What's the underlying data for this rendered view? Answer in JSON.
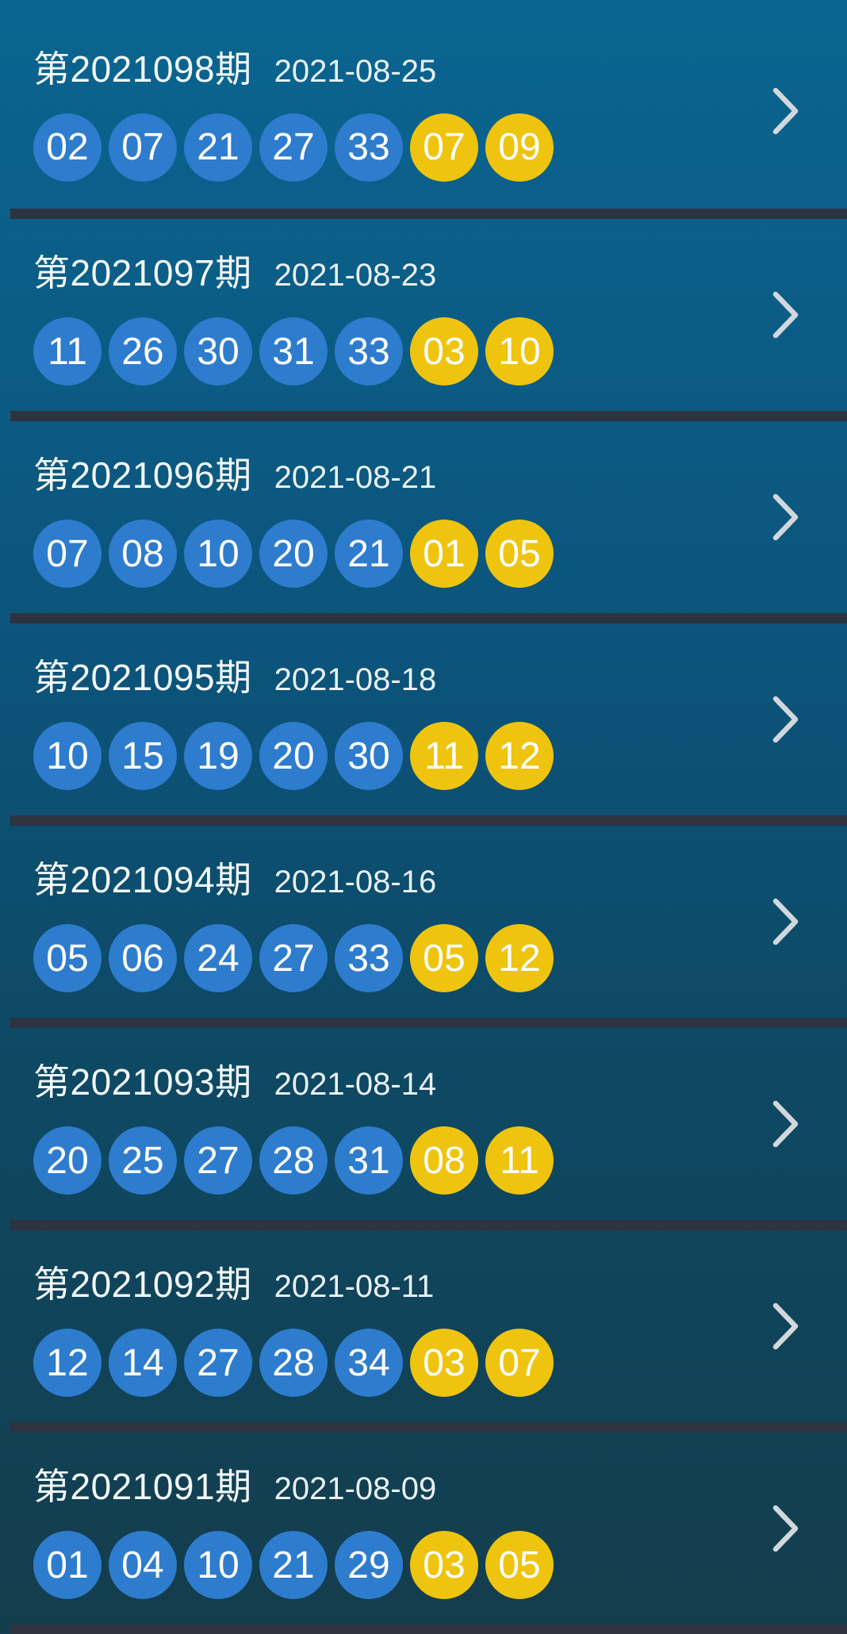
{
  "colors": {
    "bg_top": "#0a6590",
    "bg_mid": "#0c537a",
    "bg_bottom": "#143d4c",
    "divider": "#2e3340",
    "front_ball": "#2e7ccd",
    "back_ball": "#eec40e",
    "ball_text": "#ffffff",
    "title_text": "#f2f8fb",
    "date_text": "#e9f1f6",
    "chevron": "#d2d7dc"
  },
  "icons": {
    "chevron_right": "chevron-right-icon"
  },
  "list": {
    "rows": [
      {
        "issue": "第2021098期",
        "date": "2021-08-25",
        "front": [
          "02",
          "07",
          "21",
          "27",
          "33"
        ],
        "back": [
          "07",
          "09"
        ]
      },
      {
        "issue": "第2021097期",
        "date": "2021-08-23",
        "front": [
          "11",
          "26",
          "30",
          "31",
          "33"
        ],
        "back": [
          "03",
          "10"
        ]
      },
      {
        "issue": "第2021096期",
        "date": "2021-08-21",
        "front": [
          "07",
          "08",
          "10",
          "20",
          "21"
        ],
        "back": [
          "01",
          "05"
        ]
      },
      {
        "issue": "第2021095期",
        "date": "2021-08-18",
        "front": [
          "10",
          "15",
          "19",
          "20",
          "30"
        ],
        "back": [
          "11",
          "12"
        ]
      },
      {
        "issue": "第2021094期",
        "date": "2021-08-16",
        "front": [
          "05",
          "06",
          "24",
          "27",
          "33"
        ],
        "back": [
          "05",
          "12"
        ]
      },
      {
        "issue": "第2021093期",
        "date": "2021-08-14",
        "front": [
          "20",
          "25",
          "27",
          "28",
          "31"
        ],
        "back": [
          "08",
          "11"
        ]
      },
      {
        "issue": "第2021092期",
        "date": "2021-08-11",
        "front": [
          "12",
          "14",
          "27",
          "28",
          "34"
        ],
        "back": [
          "03",
          "07"
        ]
      },
      {
        "issue": "第2021091期",
        "date": "2021-08-09",
        "front": [
          "01",
          "04",
          "10",
          "21",
          "29"
        ],
        "back": [
          "03",
          "05"
        ]
      }
    ]
  }
}
